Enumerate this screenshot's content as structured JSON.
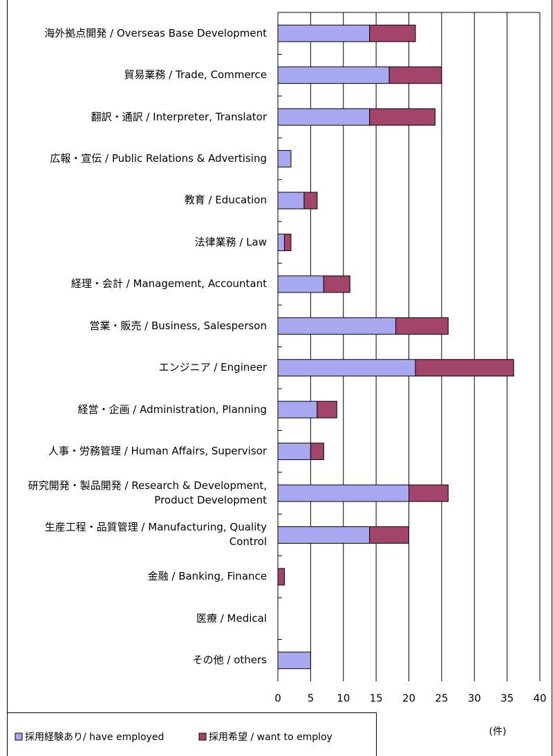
{
  "chart_data": {
    "type": "bar",
    "orientation": "horizontal",
    "stacked": true,
    "categories": [
      "海外拠点開発 / Overseas Base Development",
      "貿易業務 / Trade, Commerce",
      "翻訳・通訳 / Interpreter, Translator",
      "広報・宣伝 / Public Relations & Advertising",
      "教育 / Education",
      "法律業務 / Law",
      "経理・会計 / Management, Accountant",
      "営業・販売 / Business, Salesperson",
      "エンジニア / Engineer",
      "経営・企画 / Administration, Planning",
      "人事・労務管理 / Human Affairs, Supervisor",
      "研究開発・製品開発 / Research & Development, Product Development",
      "生産工程・品質管理 / Manufacturing, Quality Control",
      "金融 / Banking, Finance",
      "医療 / Medical",
      "その他 / others"
    ],
    "series": [
      {
        "name": "採用経験あり/ have employed",
        "color": "#a8a8f0",
        "values": [
          14,
          17,
          14,
          2,
          4,
          1,
          7,
          18,
          21,
          6,
          5,
          20,
          14,
          0,
          0,
          5
        ]
      },
      {
        "name": "採用希望 / want to employ",
        "color": "#a3446a",
        "values": [
          7,
          8,
          10,
          0,
          2,
          1,
          4,
          8,
          15,
          3,
          2,
          6,
          6,
          1,
          0,
          0
        ]
      }
    ],
    "xlim": [
      0,
      40
    ],
    "xticks": [
      0,
      5,
      10,
      15,
      20,
      25,
      30,
      35,
      40
    ],
    "x_unit_label": "(件)",
    "grid": true,
    "legend": "bottom"
  }
}
